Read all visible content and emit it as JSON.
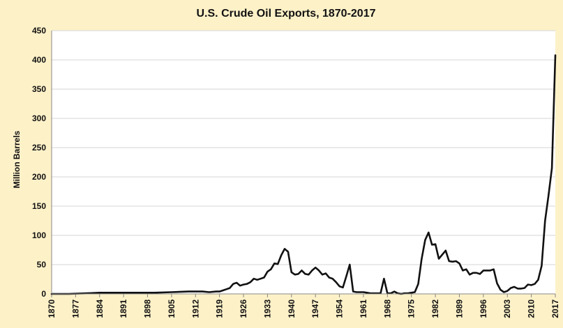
{
  "chart_data": {
    "type": "line",
    "title": "U.S. Crude Oil Exports, 1870-2017",
    "xlabel": "",
    "ylabel": "Million Barrels",
    "ylim": [
      0,
      450
    ],
    "yticks": [
      "0",
      "50",
      "100",
      "150",
      "200",
      "250",
      "300",
      "350",
      "400",
      "450"
    ],
    "xlim": [
      1870,
      2017
    ],
    "xticks": [
      "1870",
      "1877",
      "1884",
      "1891",
      "1898",
      "1905",
      "1912",
      "1919",
      "1926",
      "1933",
      "1940",
      "1947",
      "1954",
      "1961",
      "1968",
      "1975",
      "1982",
      "1989",
      "1996",
      "2003",
      "2010",
      "2017"
    ],
    "series": [
      {
        "name": "Crude Oil Exports",
        "x": [
          1870,
          1875,
          1880,
          1884,
          1890,
          1895,
          1900,
          1905,
          1910,
          1914,
          1916,
          1918,
          1919,
          1920,
          1921,
          1922,
          1923,
          1924,
          1925,
          1926,
          1927,
          1928,
          1929,
          1930,
          1931,
          1932,
          1933,
          1934,
          1935,
          1936,
          1937,
          1938,
          1939,
          1940,
          1941,
          1942,
          1943,
          1944,
          1945,
          1946,
          1947,
          1948,
          1949,
          1950,
          1951,
          1952,
          1953,
          1954,
          1955,
          1956,
          1957,
          1958,
          1959,
          1960,
          1961,
          1962,
          1963,
          1964,
          1965,
          1966,
          1967,
          1968,
          1969,
          1970,
          1971,
          1972,
          1973,
          1974,
          1975,
          1976,
          1977,
          1978,
          1979,
          1980,
          1981,
          1982,
          1983,
          1984,
          1985,
          1986,
          1987,
          1988,
          1989,
          1990,
          1991,
          1992,
          1993,
          1994,
          1995,
          1996,
          1997,
          1998,
          1999,
          2000,
          2001,
          2002,
          2003,
          2004,
          2005,
          2006,
          2007,
          2008,
          2009,
          2010,
          2011,
          2012,
          2013,
          2014,
          2015,
          2016,
          2017
        ],
        "values": [
          0,
          0,
          1,
          2,
          2,
          2,
          2,
          3,
          4,
          4,
          3,
          4,
          4,
          6,
          8,
          10,
          17,
          19,
          14,
          16,
          17,
          20,
          26,
          24,
          26,
          28,
          38,
          42,
          52,
          51,
          66,
          77,
          72,
          37,
          33,
          34,
          40,
          34,
          33,
          40,
          45,
          40,
          33,
          35,
          28,
          26,
          20,
          13,
          11,
          30,
          50,
          4,
          3,
          3,
          3,
          2,
          1,
          1,
          1,
          1,
          26,
          1,
          1,
          4,
          1,
          0,
          1,
          1,
          2,
          3,
          17,
          60,
          92,
          105,
          84,
          85,
          60,
          67,
          74,
          56,
          55,
          56,
          52,
          40,
          42,
          33,
          36,
          36,
          34,
          40,
          40,
          40,
          42,
          18,
          7,
          3,
          5,
          10,
          12,
          9,
          9,
          10,
          16,
          15,
          17,
          24,
          48,
          125,
          168,
          215,
          408
        ]
      }
    ]
  }
}
